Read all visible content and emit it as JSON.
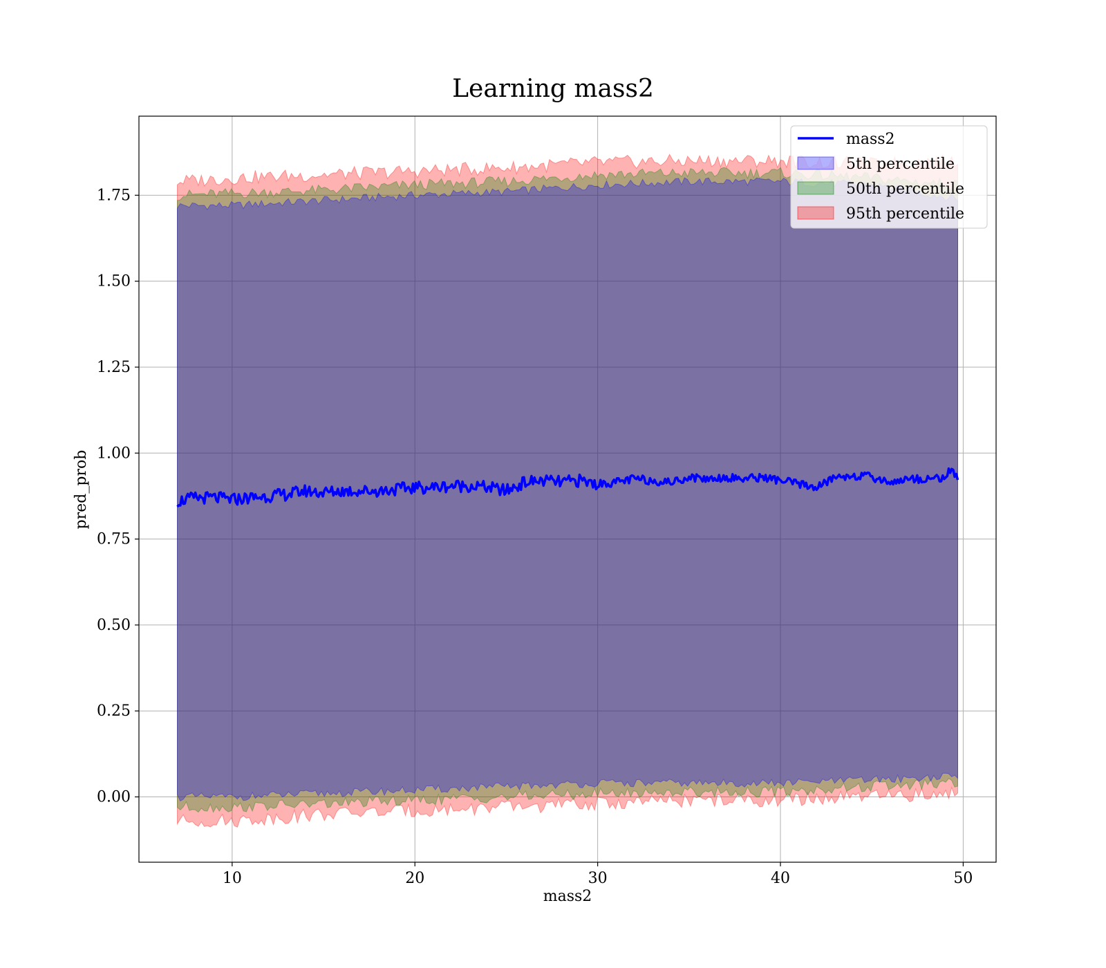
{
  "chart_data": {
    "type": "line",
    "title": "Learning mass2",
    "xlabel": "mass2",
    "ylabel": "pred_prob",
    "xlim": [
      4.9,
      51.8
    ],
    "ylim": [
      -0.19,
      1.98
    ],
    "xticks": [
      10,
      20,
      30,
      40,
      50
    ],
    "xtick_labels": [
      "10",
      "20",
      "30",
      "40",
      "50"
    ],
    "yticks": [
      0.0,
      0.25,
      0.5,
      0.75,
      1.0,
      1.25,
      1.5,
      1.75
    ],
    "ytick_labels": [
      "0.00",
      "0.25",
      "0.50",
      "0.75",
      "1.00",
      "1.25",
      "1.50",
      "1.75"
    ],
    "grid": true,
    "legend_position": "top-right",
    "x_range": [
      7.0,
      49.7
    ],
    "line_series": {
      "name": "mass2",
      "color": "#0000ff",
      "x": [
        7.0,
        8.0,
        9.0,
        10.0,
        11.0,
        12.0,
        13.0,
        14.0,
        15.0,
        16.0,
        17.0,
        18.0,
        19.0,
        20.0,
        21.0,
        22.0,
        23.0,
        24.0,
        25.0,
        26.0,
        27.0,
        28.0,
        29.0,
        30.0,
        31.0,
        32.0,
        33.0,
        34.0,
        35.0,
        36.0,
        37.0,
        38.0,
        39.0,
        40.0,
        41.0,
        42.0,
        43.0,
        44.0,
        45.0,
        46.0,
        47.0,
        48.0,
        49.0,
        49.4,
        49.7
      ],
      "y": [
        0.86,
        0.87,
        0.87,
        0.865,
        0.87,
        0.875,
        0.88,
        0.89,
        0.885,
        0.89,
        0.89,
        0.89,
        0.895,
        0.9,
        0.9,
        0.905,
        0.905,
        0.9,
        0.89,
        0.915,
        0.92,
        0.915,
        0.92,
        0.91,
        0.915,
        0.925,
        0.92,
        0.915,
        0.93,
        0.925,
        0.93,
        0.925,
        0.93,
        0.92,
        0.91,
        0.9,
        0.93,
        0.935,
        0.93,
        0.915,
        0.925,
        0.925,
        0.93,
        0.955,
        0.92
      ]
    },
    "band_series": [
      {
        "name": "5th percentile",
        "color": "#0000ff",
        "x": [
          7.0,
          10.0,
          15.0,
          20.0,
          25.0,
          30.0,
          35.0,
          40.0,
          45.0,
          49.7
        ],
        "upper": [
          1.72,
          1.72,
          1.735,
          1.75,
          1.76,
          1.78,
          1.79,
          1.79,
          1.78,
          1.74
        ],
        "lower": [
          0.0,
          0.0,
          0.01,
          0.02,
          0.03,
          0.04,
          0.04,
          0.04,
          0.05,
          0.06
        ]
      },
      {
        "name": "50th percentile",
        "color": "#008000",
        "x": [
          7.0,
          10.0,
          15.0,
          20.0,
          25.0,
          30.0,
          35.0,
          40.0,
          45.0,
          49.7
        ],
        "upper": [
          1.75,
          1.755,
          1.765,
          1.78,
          1.79,
          1.81,
          1.815,
          1.815,
          1.8,
          1.78
        ],
        "lower": [
          -0.03,
          -0.03,
          -0.02,
          -0.01,
          0.0,
          0.01,
          0.015,
          0.015,
          0.03,
          0.04
        ]
      },
      {
        "name": "95th percentile",
        "color": "#ff0000",
        "x": [
          7.0,
          10.0,
          15.0,
          20.0,
          25.0,
          30.0,
          35.0,
          40.0,
          45.0,
          49.7
        ],
        "upper": [
          1.79,
          1.8,
          1.81,
          1.82,
          1.83,
          1.845,
          1.85,
          1.85,
          1.84,
          1.85
        ],
        "lower": [
          -0.07,
          -0.07,
          -0.05,
          -0.04,
          -0.03,
          -0.02,
          -0.01,
          -0.01,
          0.0,
          0.01
        ]
      }
    ],
    "legend": [
      {
        "label": "mass2",
        "kind": "line",
        "color": "#0000ff"
      },
      {
        "label": "5th percentile",
        "kind": "patch",
        "color": "#0000ff"
      },
      {
        "label": "50th percentile",
        "kind": "patch",
        "color": "#008000"
      },
      {
        "label": "95th percentile",
        "kind": "patch",
        "color": "#ff0000"
      }
    ]
  }
}
